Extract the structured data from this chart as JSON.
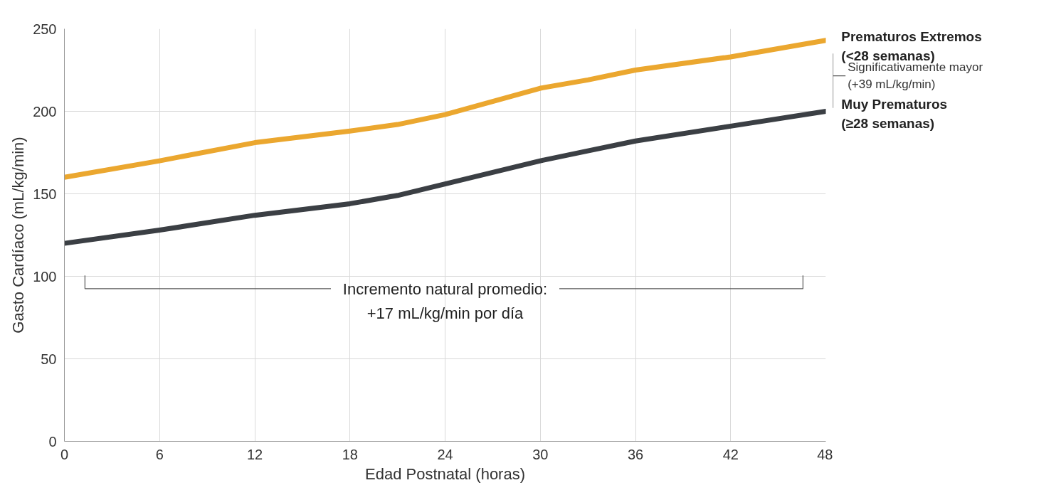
{
  "chart_data": {
    "type": "line",
    "xlabel": "Edad Postnatal (horas)",
    "ylabel": "Gasto Cardíaco (mL/kg/min)",
    "x": [
      0,
      6,
      12,
      18,
      21,
      24,
      30,
      33,
      36,
      42,
      48
    ],
    "series": [
      {
        "name": "Prematuros Extremos\n(<28 semanas)",
        "color": "#eba72f",
        "values": [
          160,
          170,
          181,
          188,
          192,
          198,
          214,
          219,
          225,
          233,
          243
        ]
      },
      {
        "name": "Muy Prematuros\n(≥28 semanas)",
        "color": "#3b3f44",
        "values": [
          120,
          128,
          137,
          144,
          149,
          156,
          170,
          176,
          182,
          191,
          200
        ]
      }
    ],
    "annotations": [
      "Significativamente mayor\n(+39 mL/kg/min)",
      "Incremento natural promedio:\n+17 mL/kg/min por día"
    ],
    "xlim": [
      0,
      48
    ],
    "xticks": [
      0,
      6,
      12,
      18,
      24,
      30,
      36,
      42,
      48
    ],
    "ylim": [
      0,
      250
    ],
    "yticks": [
      0,
      50,
      100,
      150,
      200,
      250
    ],
    "grid": true,
    "legend": false,
    "marker": "none",
    "line_style": "solid"
  }
}
